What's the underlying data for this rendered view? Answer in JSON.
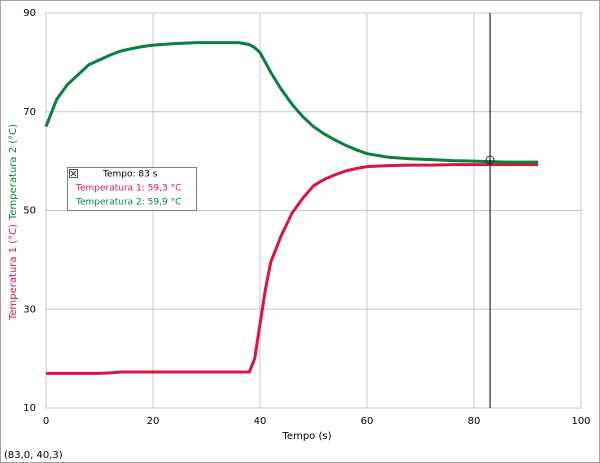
{
  "chart_data": {
    "type": "line",
    "x_label": "Tempo (s)",
    "y_labels": [
      "Temperatura 1 (°C)",
      "Temperatura 2 (°C)"
    ],
    "x": [
      0,
      2,
      4,
      6,
      8,
      10,
      12,
      14,
      16,
      18,
      20,
      24,
      28,
      32,
      36,
      38,
      39,
      40,
      41,
      42,
      44,
      46,
      48,
      50,
      52,
      54,
      56,
      58,
      60,
      64,
      68,
      72,
      76,
      80,
      83,
      86,
      92
    ],
    "series": [
      {
        "name": "Temperatura 1",
        "color": "#dc1446",
        "values": [
          17,
          17,
          17,
          17,
          17,
          17,
          17.1,
          17.3,
          17.3,
          17.3,
          17.3,
          17.3,
          17.3,
          17.3,
          17.3,
          17.3,
          20,
          27,
          34,
          39.5,
          45,
          49.5,
          52.5,
          55,
          56.3,
          57.2,
          58,
          58.5,
          58.9,
          59.1,
          59.2,
          59.2,
          59.3,
          59.3,
          59.3,
          59.3,
          59.3
        ]
      },
      {
        "name": "Temperatura 2",
        "color": "#0a8040",
        "values": [
          67,
          72.5,
          75.5,
          77.5,
          79.5,
          80.5,
          81.5,
          82.3,
          82.8,
          83.2,
          83.5,
          83.8,
          84,
          84,
          84,
          83.6,
          83,
          82,
          80,
          78,
          74.5,
          71.5,
          69,
          67,
          65.5,
          64.3,
          63.2,
          62.3,
          61.5,
          60.8,
          60.5,
          60.3,
          60.1,
          60,
          59.9,
          59.8,
          59.8
        ]
      }
    ],
    "xlim": [
      0,
      100
    ],
    "xticks": [
      0,
      20,
      40,
      60,
      80,
      100
    ],
    "ylim": [
      10,
      90
    ],
    "yticks": [
      10,
      30,
      50,
      70,
      90
    ],
    "grid": true,
    "cursor": {
      "x": 83,
      "lines": [
        "Tempo: 83 s",
        "Temperatura 1: 59,3 °C",
        "Temperatura 2: 59,9 °C"
      ]
    },
    "status": "(83,0, 40,3)"
  }
}
